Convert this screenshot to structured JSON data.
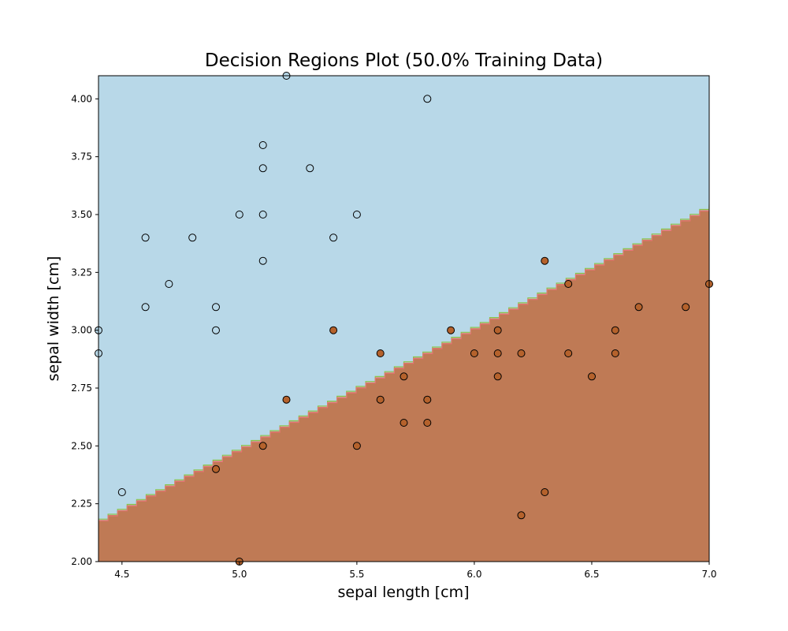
{
  "chart_data": {
    "type": "scatter",
    "title": "Decision Regions Plot (50.0% Training Data)",
    "xlabel": "sepal length [cm]",
    "ylabel": "sepal width [cm]",
    "xlim": [
      4.4,
      7.0
    ],
    "ylim": [
      2.0,
      4.1
    ],
    "x_ticks": [
      "4.5",
      "5.0",
      "5.5",
      "6.0",
      "6.5",
      "7.0"
    ],
    "y_ticks": [
      "2.00",
      "2.25",
      "2.50",
      "2.75",
      "3.00",
      "3.25",
      "3.50",
      "3.75",
      "4.00"
    ],
    "grid": false,
    "legend": "none",
    "decision_boundary": {
      "points": [
        [
          4.4,
          2.18
        ],
        [
          7.0,
          3.54
        ]
      ],
      "upper_region_color": "#b8d8e8",
      "lower_region_color": "#bf7a55",
      "edge_colors": [
        "#8bc34a",
        "#e57373"
      ]
    },
    "series": [
      {
        "color": "#b8d8e8",
        "points": [
          [
            4.4,
            3.0
          ],
          [
            4.4,
            2.9
          ],
          [
            4.5,
            2.3
          ],
          [
            4.6,
            3.4
          ],
          [
            4.6,
            3.1
          ],
          [
            4.7,
            3.2
          ],
          [
            4.8,
            3.4
          ],
          [
            4.9,
            3.1
          ],
          [
            4.9,
            3.0
          ],
          [
            5.0,
            3.5
          ],
          [
            5.1,
            3.8
          ],
          [
            5.1,
            3.7
          ],
          [
            5.1,
            3.5
          ],
          [
            5.1,
            3.3
          ],
          [
            5.2,
            4.1
          ],
          [
            5.3,
            3.7
          ],
          [
            5.4,
            3.4
          ],
          [
            5.5,
            3.5
          ],
          [
            5.8,
            4.0
          ]
        ]
      },
      {
        "color": "#b5622c",
        "points": [
          [
            4.9,
            2.4
          ],
          [
            5.0,
            2.0
          ],
          [
            5.1,
            2.5
          ],
          [
            5.2,
            2.7
          ],
          [
            5.4,
            3.0
          ],
          [
            5.5,
            2.5
          ],
          [
            5.6,
            2.9
          ],
          [
            5.6,
            2.7
          ],
          [
            5.7,
            2.8
          ],
          [
            5.7,
            2.6
          ],
          [
            5.8,
            2.7
          ],
          [
            5.8,
            2.6
          ],
          [
            5.9,
            3.0
          ],
          [
            6.0,
            2.9
          ],
          [
            6.1,
            3.0
          ],
          [
            6.1,
            2.9
          ],
          [
            6.1,
            2.8
          ],
          [
            6.2,
            2.9
          ],
          [
            6.2,
            2.2
          ],
          [
            6.3,
            3.3
          ],
          [
            6.3,
            2.3
          ],
          [
            6.4,
            3.2
          ],
          [
            6.4,
            2.9
          ],
          [
            6.5,
            2.8
          ],
          [
            6.6,
            3.0
          ],
          [
            6.6,
            2.9
          ],
          [
            6.7,
            3.1
          ],
          [
            6.9,
            3.1
          ],
          [
            7.0,
            3.2
          ]
        ]
      }
    ]
  }
}
